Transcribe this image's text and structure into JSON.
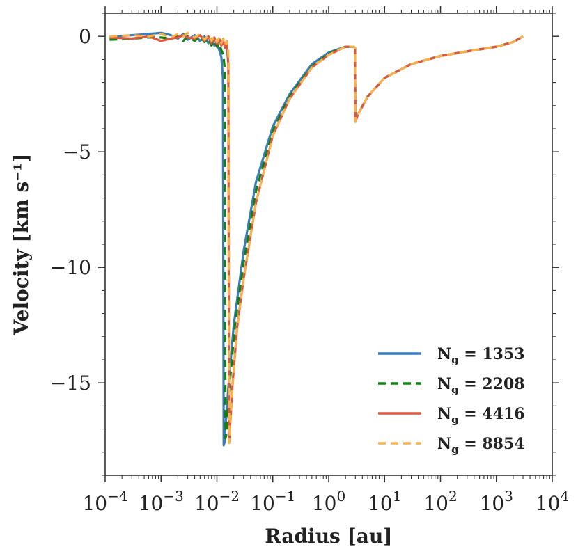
{
  "chart_data": {
    "type": "line",
    "title": "",
    "xlabel": "Radius [au]",
    "ylabel": "Velocity [km s⁻¹]",
    "xscale": "log",
    "xlim": [
      0.0001,
      10000
    ],
    "ylim": [
      -19,
      1
    ],
    "x_ticks": [
      {
        "value": 0.0001,
        "base": "10",
        "exp": "−4"
      },
      {
        "value": 0.001,
        "base": "10",
        "exp": "−3"
      },
      {
        "value": 0.01,
        "base": "10",
        "exp": "−2"
      },
      {
        "value": 0.1,
        "base": "10",
        "exp": "−1"
      },
      {
        "value": 1,
        "base": "10",
        "exp": "0"
      },
      {
        "value": 10,
        "base": "10",
        "exp": "1"
      },
      {
        "value": 100,
        "base": "10",
        "exp": "2"
      },
      {
        "value": 1000,
        "base": "10",
        "exp": "3"
      },
      {
        "value": 10000,
        "base": "10",
        "exp": "4"
      }
    ],
    "y_ticks": [
      {
        "value": 0,
        "label": "0"
      },
      {
        "value": -5,
        "label": "−5"
      },
      {
        "value": -10,
        "label": "−10"
      },
      {
        "value": -15,
        "label": "−15"
      }
    ],
    "legend_position": "bottom-right",
    "series": [
      {
        "name": "N_g = 1353",
        "label_main": "N",
        "label_sub": "g",
        "label_rest": " = 1353",
        "color": "#3a7db8",
        "dash": "solid",
        "x": [
          0.00012,
          0.0003,
          0.0006,
          0.001,
          0.0015,
          0.002,
          0.0025,
          0.003,
          0.004,
          0.005,
          0.006,
          0.007,
          0.008,
          0.009,
          0.01,
          0.011,
          0.012,
          0.0128,
          0.0132,
          0.0136,
          0.016,
          0.02,
          0.03,
          0.05,
          0.1,
          0.2,
          0.5,
          1,
          2,
          2.8,
          2.95,
          3.0,
          3.3,
          5,
          10,
          30,
          100,
          300,
          1000,
          2000,
          3000
        ],
        "y": [
          -0.02,
          0.05,
          0.1,
          0.15,
          0.05,
          -0.1,
          0.1,
          -0.15,
          0.05,
          -0.2,
          0.0,
          -0.3,
          -0.1,
          -0.4,
          -0.3,
          -0.6,
          -0.9,
          -1.8,
          -17.7,
          -17.6,
          -15.2,
          -12.5,
          -9.3,
          -6.3,
          -3.9,
          -2.5,
          -1.2,
          -0.7,
          -0.45,
          -0.45,
          -0.5,
          -3.7,
          -3.4,
          -2.6,
          -1.8,
          -1.2,
          -0.85,
          -0.65,
          -0.45,
          -0.25,
          0.0
        ]
      },
      {
        "name": "N_g = 2208",
        "label_main": "N",
        "label_sub": "g",
        "label_rest": " = 2208",
        "color": "#138012",
        "dash": "dashed",
        "x": [
          0.00012,
          0.0003,
          0.0006,
          0.001,
          0.0015,
          0.002,
          0.0025,
          0.003,
          0.004,
          0.005,
          0.006,
          0.007,
          0.008,
          0.009,
          0.01,
          0.011,
          0.012,
          0.013,
          0.0138,
          0.0142,
          0.0146,
          0.017,
          0.021,
          0.03,
          0.05,
          0.1,
          0.2,
          0.5,
          1,
          2,
          2.8,
          2.95,
          3.0,
          3.3,
          5,
          10,
          30,
          100,
          300,
          1000,
          2000,
          3000
        ],
        "y": [
          -0.15,
          -0.1,
          -0.05,
          -0.05,
          -0.1,
          0.0,
          -0.2,
          0.0,
          -0.2,
          0.0,
          -0.25,
          -0.1,
          -0.4,
          -0.2,
          -0.45,
          -0.3,
          -0.6,
          -0.8,
          -1.4,
          -17.4,
          -17.3,
          -15.0,
          -12.5,
          -9.8,
          -6.7,
          -4.1,
          -2.6,
          -1.3,
          -0.75,
          -0.45,
          -0.45,
          -0.5,
          -3.7,
          -3.4,
          -2.6,
          -1.8,
          -1.2,
          -0.85,
          -0.65,
          -0.45,
          -0.25,
          0.0
        ]
      },
      {
        "name": "N_g = 4416",
        "label_main": "N",
        "label_sub": "g",
        "label_rest": " = 4416",
        "color": "#d9583f",
        "dash": "solid",
        "x": [
          0.00012,
          0.0003,
          0.0006,
          0.001,
          0.0015,
          0.002,
          0.0025,
          0.003,
          0.004,
          0.005,
          0.006,
          0.007,
          0.008,
          0.009,
          0.01,
          0.011,
          0.012,
          0.013,
          0.014,
          0.015,
          0.0155,
          0.016,
          0.0165,
          0.019,
          0.023,
          0.03,
          0.05,
          0.1,
          0.2,
          0.5,
          1,
          2,
          2.8,
          2.95,
          3.0,
          3.3,
          5,
          10,
          30,
          100,
          300,
          1000,
          2000,
          3000
        ],
        "y": [
          -0.05,
          -0.1,
          0.0,
          -0.2,
          -0.1,
          -0.05,
          0.05,
          -0.05,
          -0.1,
          0.05,
          -0.2,
          0.0,
          -0.3,
          -0.05,
          -0.35,
          -0.1,
          -0.4,
          -0.2,
          -0.5,
          -0.3,
          -0.8,
          -1.2,
          -17.6,
          -15.1,
          -12.6,
          -10.5,
          -7.2,
          -4.3,
          -2.7,
          -1.35,
          -0.8,
          -0.45,
          -0.45,
          -0.5,
          -3.7,
          -3.4,
          -2.6,
          -1.8,
          -1.2,
          -0.85,
          -0.65,
          -0.45,
          -0.25,
          0.0
        ]
      },
      {
        "name": "N_g = 8854",
        "label_main": "N",
        "label_sub": "g",
        "label_rest": " = 8854",
        "color": "#f8b24c",
        "dash": "dashed",
        "x": [
          0.00012,
          0.0003,
          0.0006,
          0.001,
          0.0015,
          0.002,
          0.0025,
          0.003,
          0.004,
          0.005,
          0.006,
          0.007,
          0.008,
          0.009,
          0.01,
          0.011,
          0.012,
          0.013,
          0.014,
          0.015,
          0.0158,
          0.0162,
          0.0166,
          0.019,
          0.023,
          0.03,
          0.05,
          0.1,
          0.2,
          0.5,
          1,
          2,
          2.8,
          2.95,
          3.0,
          3.3,
          5,
          10,
          30,
          100,
          300,
          1000,
          2000,
          3000
        ],
        "y": [
          0.0,
          0.05,
          0.0,
          0.1,
          -0.05,
          0.1,
          0.0,
          0.15,
          -0.05,
          0.1,
          -0.15,
          0.05,
          -0.2,
          0.0,
          -0.25,
          -0.05,
          -0.3,
          -0.1,
          -0.35,
          -0.2,
          -0.6,
          -1.0,
          -17.6,
          -15.2,
          -12.7,
          -10.5,
          -7.2,
          -4.3,
          -2.7,
          -1.35,
          -0.8,
          -0.45,
          -0.45,
          -0.5,
          -3.7,
          -3.4,
          -2.6,
          -1.8,
          -1.2,
          -0.85,
          -0.65,
          -0.45,
          -0.25,
          0.0
        ]
      }
    ]
  }
}
